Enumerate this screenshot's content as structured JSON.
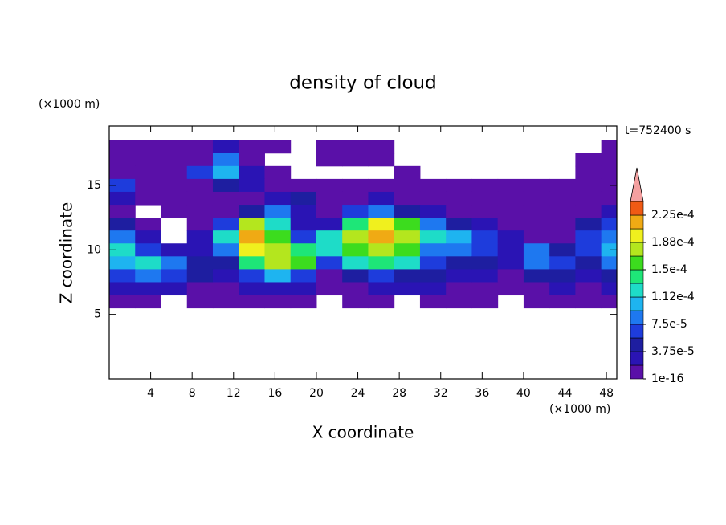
{
  "chart_data": {
    "type": "contour",
    "title": "density of cloud",
    "x_label": "X coordinate",
    "y_label": "Z coordinate",
    "x_unit": "(×1000 m)",
    "y_unit": "(×1000 m)",
    "time_label": "t=752400 s",
    "xlim": [
      0,
      49
    ],
    "ylim": [
      0,
      19.6
    ],
    "xticks": [
      4,
      8,
      12,
      16,
      20,
      24,
      28,
      32,
      36,
      40,
      44,
      48
    ],
    "yticks": [
      5,
      10,
      15
    ],
    "x": [
      1.25,
      3.75,
      6.25,
      8.75,
      11.25,
      13.75,
      16.25,
      18.75,
      21.25,
      23.75,
      26.25,
      28.75,
      31.25,
      33.75,
      36.25,
      38.75,
      41.25,
      43.75,
      46.25,
      48.75
    ],
    "y": [
      18,
      17,
      16,
      15,
      14,
      13,
      12,
      11,
      10,
      9,
      8,
      7,
      6
    ],
    "z": [
      [
        1e-05,
        1e-05,
        1e-05,
        1e-05,
        2.8e-05,
        1e-05,
        1e-05,
        null,
        1e-05,
        1e-05,
        1e-05,
        null,
        null,
        null,
        null,
        null,
        null,
        null,
        null,
        1e-05
      ],
      [
        1e-05,
        1e-05,
        1e-05,
        1e-05,
        8.4e-05,
        1e-05,
        null,
        null,
        1e-05,
        1e-05,
        1e-05,
        null,
        null,
        null,
        null,
        null,
        null,
        null,
        1e-05,
        1e-05
      ],
      [
        1e-05,
        1e-05,
        1e-05,
        6.5e-05,
        0.000103,
        2.8e-05,
        1e-05,
        null,
        null,
        null,
        null,
        1e-05,
        null,
        null,
        null,
        null,
        null,
        null,
        1e-05,
        1e-05
      ],
      [
        6.5e-05,
        1e-05,
        1e-05,
        1e-05,
        4.7e-05,
        2.8e-05,
        1e-05,
        1e-05,
        1e-05,
        1e-05,
        1e-05,
        1e-05,
        1e-05,
        1e-05,
        1e-05,
        1e-05,
        1e-05,
        1e-05,
        1e-05,
        1e-05
      ],
      [
        2.8e-05,
        1e-05,
        1e-05,
        1e-05,
        1e-05,
        1e-05,
        2.8e-05,
        4.7e-05,
        1e-05,
        1e-05,
        2.8e-05,
        1e-05,
        1e-05,
        1e-05,
        1e-05,
        1e-05,
        1e-05,
        1e-05,
        1e-05,
        1e-05
      ],
      [
        1e-05,
        null,
        1e-05,
        1e-05,
        1e-05,
        4.7e-05,
        8.4e-05,
        2.8e-05,
        1e-05,
        6.5e-05,
        8.4e-05,
        4.7e-05,
        2.8e-05,
        1e-05,
        1e-05,
        1e-05,
        1e-05,
        1e-05,
        1e-05,
        2.8e-05
      ],
      [
        4.7e-05,
        1e-05,
        null,
        1e-05,
        6.5e-05,
        0.000178,
        0.000122,
        2.8e-05,
        2.8e-05,
        0.00014,
        0.000197,
        0.00016,
        8.4e-05,
        4.7e-05,
        2.8e-05,
        1e-05,
        1e-05,
        1e-05,
        4.7e-05,
        6.5e-05
      ],
      [
        8.4e-05,
        2.8e-05,
        null,
        2.8e-05,
        0.000122,
        0.000215,
        0.00016,
        6.5e-05,
        0.000122,
        0.000178,
        0.000215,
        0.000178,
        0.000122,
        0.000103,
        6.5e-05,
        2.8e-05,
        1e-05,
        1e-05,
        6.5e-05,
        8.4e-05
      ],
      [
        0.000122,
        6.5e-05,
        2.8e-05,
        2.8e-05,
        8.4e-05,
        0.000197,
        0.000178,
        0.00014,
        0.000122,
        0.00016,
        0.000178,
        0.00016,
        8.4e-05,
        8.4e-05,
        6.5e-05,
        2.8e-05,
        8.4e-05,
        4.7e-05,
        6.5e-05,
        0.000103
      ],
      [
        0.000103,
        0.000122,
        8.4e-05,
        4.7e-05,
        4.7e-05,
        0.00014,
        0.000178,
        0.00016,
        6.5e-05,
        0.000122,
        0.00014,
        0.000122,
        6.5e-05,
        4.7e-05,
        4.7e-05,
        2.8e-05,
        8.4e-05,
        6.5e-05,
        4.7e-05,
        8.4e-05
      ],
      [
        6.5e-05,
        8.4e-05,
        6.5e-05,
        4.7e-05,
        2.8e-05,
        6.5e-05,
        0.000103,
        6.5e-05,
        1e-05,
        4.7e-05,
        6.5e-05,
        4.7e-05,
        4.7e-05,
        2.8e-05,
        2.8e-05,
        1e-05,
        4.7e-05,
        4.7e-05,
        2.8e-05,
        4.7e-05
      ],
      [
        2.8e-05,
        2.8e-05,
        2.8e-05,
        1e-05,
        1e-05,
        2.8e-05,
        2.8e-05,
        2.8e-05,
        1e-05,
        1e-05,
        2.8e-05,
        2.8e-05,
        2.8e-05,
        1e-05,
        1e-05,
        1e-05,
        1e-05,
        2.8e-05,
        1e-05,
        2.8e-05
      ],
      [
        1e-05,
        1e-05,
        null,
        1e-05,
        1e-05,
        1e-05,
        1e-05,
        1e-05,
        null,
        1e-05,
        1e-05,
        null,
        1e-05,
        1e-05,
        1e-05,
        null,
        1e-05,
        1e-05,
        1e-05,
        1e-05
      ]
    ],
    "levels": [
      1e-16,
      1.875e-05,
      3.75e-05,
      5.625e-05,
      7.5e-05,
      9.375e-05,
      0.0001125,
      0.00013125,
      0.00015,
      0.00016875,
      0.0001875,
      0.00020625,
      0.000225
    ],
    "colors": [
      "#5a10a8",
      "#2a14b4",
      "#1e1ea0",
      "#1e3cdc",
      "#1e78f0",
      "#1eb4f0",
      "#1edcc8",
      "#1ee678",
      "#3cdc1e",
      "#b4e61e",
      "#f0f01e",
      "#f0aa14",
      "#f05a14"
    ],
    "overflow_color": "#f4a0a0",
    "level_ticks": [
      1e-16,
      {
        "value": 3.75e-05,
        "label": "3.75e-5"
      },
      {
        "value": 7.5e-05,
        "label": "7.5e-5"
      },
      {
        "value": 0.0001125,
        "label": "1.12e-4"
      },
      {
        "value": 0.00015,
        "label": "1.5e-4"
      },
      {
        "value": 0.0001875,
        "label": "1.88e-4"
      },
      {
        "value": 0.000225,
        "label": "2.25e-4"
      }
    ]
  }
}
